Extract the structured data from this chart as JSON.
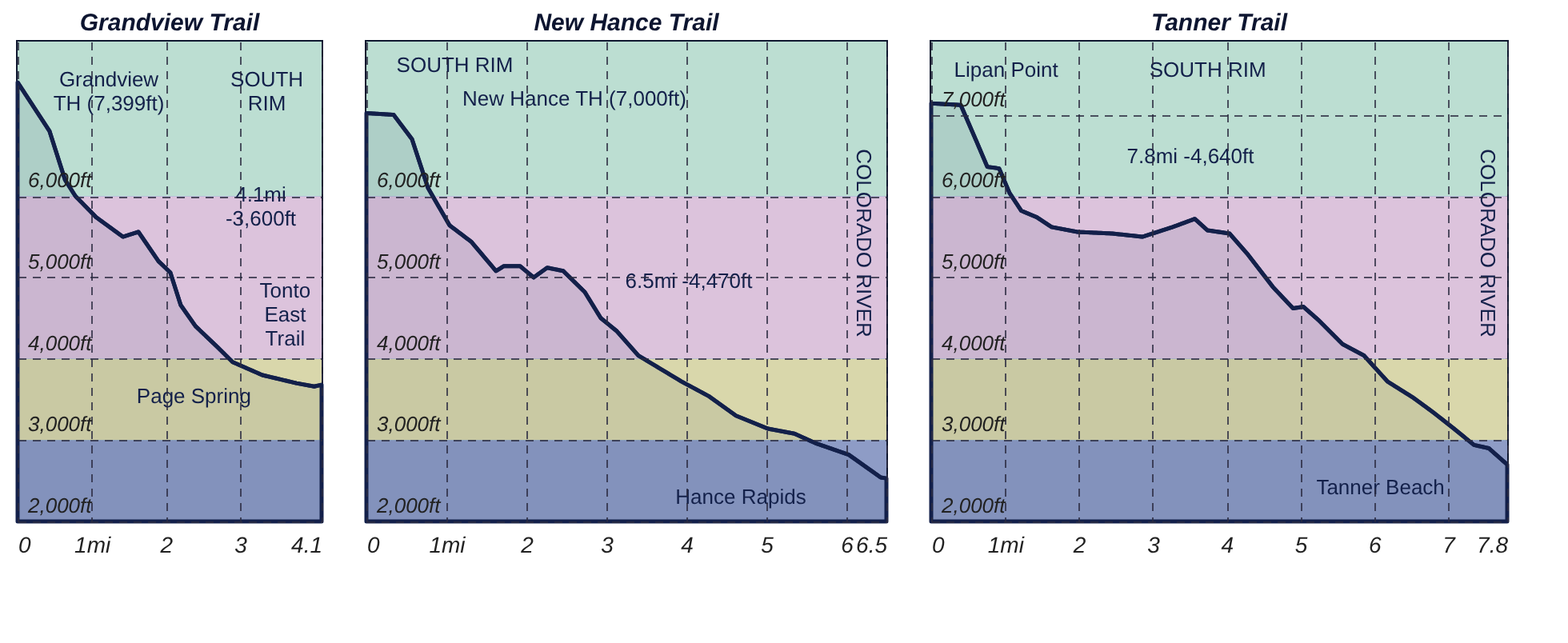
{
  "chart_data": [
    {
      "type": "area",
      "title": "Grandview Trail",
      "grid": true,
      "line_style": "solid",
      "x": [
        0,
        0.43,
        0.64,
        0.78,
        1.06,
        1.42,
        1.63,
        1.9,
        2.06,
        2.2,
        2.4,
        2.7,
        2.9,
        3.3,
        3.76,
        4.0,
        4.1
      ],
      "series": [
        {
          "color": "#13204a",
          "values": [
            7399,
            6800,
            6200,
            6000,
            5740,
            5500,
            5560,
            5200,
            5060,
            4660,
            4400,
            4140,
            3960,
            3800,
            3700,
            3660,
            3680
          ]
        }
      ],
      "xlim": [
        0,
        4.1
      ],
      "xticks": [
        0,
        {
          "value": 1,
          "label": "1mi"
        },
        2,
        3,
        4.1
      ],
      "ylim": [
        2000,
        7900
      ],
      "yticks": [
        {
          "value": 2000,
          "label": "2,000ft"
        },
        {
          "value": 3000,
          "label": "3,000ft"
        },
        {
          "value": 4000,
          "label": "4,000ft"
        },
        {
          "value": 5000,
          "label": "5,000ft"
        },
        {
          "value": 6000,
          "label": "6,000ft"
        }
      ],
      "bands": [
        {
          "axis": "y",
          "from": 2000,
          "to": 3000,
          "color": "#8e9cc6"
        },
        {
          "axis": "y",
          "from": 3000,
          "to": 4000,
          "color": "#d9d7ab"
        },
        {
          "axis": "y",
          "from": 4000,
          "to": 6000,
          "color": "#dcc3dc"
        },
        {
          "axis": "y",
          "from": 6000,
          "to": 7900,
          "color": "#bcded2"
        }
      ],
      "annotations": [
        "Grandview\nTH (7,399ft)",
        "SOUTH\nRIM",
        "4.1mi\n-3,600ft",
        "Tonto\nEast\nTrail",
        "Page Spring"
      ]
    },
    {
      "type": "area",
      "title": "New Hance Trail",
      "grid": true,
      "line_style": "solid",
      "x": [
        0,
        0.34,
        0.57,
        0.77,
        1.04,
        1.31,
        1.62,
        1.72,
        1.92,
        2.09,
        2.26,
        2.46,
        2.73,
        2.93,
        3.13,
        3.4,
        3.67,
        3.94,
        4.28,
        4.62,
        5.02,
        5.35,
        5.62,
        6.03,
        6.43,
        6.5
      ],
      "series": [
        {
          "color": "#13204a",
          "values": [
            7020,
            7000,
            6700,
            6100,
            5640,
            5440,
            5080,
            5140,
            5140,
            5000,
            5120,
            5080,
            4820,
            4500,
            4340,
            4040,
            3880,
            3720,
            3540,
            3300,
            3140,
            3080,
            2960,
            2820,
            2540,
            2530
          ]
        }
      ],
      "xlim": [
        0,
        6.5
      ],
      "xticks": [
        0,
        {
          "value": 1,
          "label": "1mi"
        },
        2,
        3,
        4,
        5,
        6,
        6.5
      ],
      "ylim": [
        2000,
        7900
      ],
      "yticks": [
        {
          "value": 2000,
          "label": "2,000ft"
        },
        {
          "value": 3000,
          "label": "3,000ft"
        },
        {
          "value": 4000,
          "label": "4,000ft"
        },
        {
          "value": 5000,
          "label": "5,000ft"
        },
        {
          "value": 6000,
          "label": "6,000ft"
        }
      ],
      "bands": [
        {
          "axis": "y",
          "from": 2000,
          "to": 3000,
          "color": "#8e9cc6"
        },
        {
          "axis": "y",
          "from": 3000,
          "to": 4000,
          "color": "#d9d7ab"
        },
        {
          "axis": "y",
          "from": 4000,
          "to": 6000,
          "color": "#dcc3dc"
        },
        {
          "axis": "y",
          "from": 6000,
          "to": 7900,
          "color": "#bcded2"
        }
      ],
      "annotations": [
        "SOUTH RIM",
        "New Hance TH (7,000ft)",
        "6.5mi  -4,470ft",
        "COLORADO RIVER",
        "Hance Rapids"
      ]
    },
    {
      "type": "area",
      "title": "Tanner Trail",
      "grid": true,
      "line_style": "solid",
      "x": [
        0,
        0.4,
        0.61,
        0.76,
        0.92,
        1.06,
        1.22,
        1.43,
        1.63,
        1.98,
        2.45,
        2.86,
        3.27,
        3.57,
        3.74,
        4.04,
        4.29,
        4.63,
        4.9,
        5.04,
        5.24,
        5.57,
        5.86,
        6.18,
        6.53,
        6.8,
        7.08,
        7.35,
        7.55,
        7.8
      ],
      "series": [
        {
          "color": "#13204a",
          "values": [
            7140,
            7120,
            6680,
            6360,
            6340,
            6040,
            5820,
            5740,
            5620,
            5560,
            5540,
            5500,
            5620,
            5720,
            5580,
            5540,
            5280,
            4880,
            4620,
            4640,
            4480,
            4180,
            4040,
            3720,
            3520,
            3340,
            3140,
            2940,
            2900,
            2700
          ]
        }
      ],
      "xlim": [
        0,
        7.8
      ],
      "xticks": [
        0,
        {
          "value": 1,
          "label": "1mi"
        },
        2,
        3,
        4,
        5,
        6,
        7,
        7.8
      ],
      "ylim": [
        2000,
        7900
      ],
      "yticks": [
        {
          "value": 2000,
          "label": "2,000ft"
        },
        {
          "value": 3000,
          "label": "3,000ft"
        },
        {
          "value": 4000,
          "label": "4,000ft"
        },
        {
          "value": 5000,
          "label": "5,000ft"
        },
        {
          "value": 6000,
          "label": "6,000ft"
        },
        {
          "value": 7000,
          "label": "7,000ft"
        }
      ],
      "bands": [
        {
          "axis": "y",
          "from": 2000,
          "to": 3000,
          "color": "#8e9cc6"
        },
        {
          "axis": "y",
          "from": 3000,
          "to": 4000,
          "color": "#d9d7ab"
        },
        {
          "axis": "y",
          "from": 4000,
          "to": 6000,
          "color": "#dcc3dc"
        },
        {
          "axis": "y",
          "from": 6000,
          "to": 7900,
          "color": "#bcded2"
        }
      ],
      "annotations": [
        "Lipan Point",
        "SOUTH RIM",
        "7.8mi  -4,640ft",
        "COLORADO RIVER",
        "Tanner Beach"
      ]
    }
  ]
}
